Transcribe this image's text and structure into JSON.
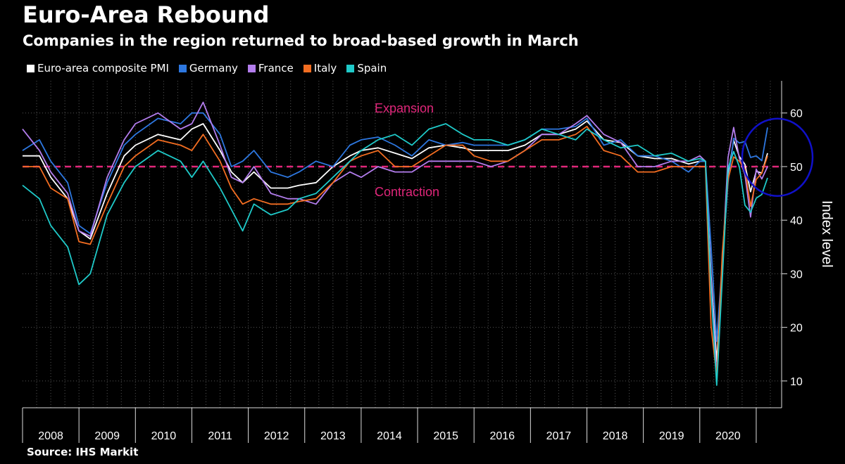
{
  "header": {
    "title": "Euro-Area Rebound",
    "subtitle": "Companies in the region returned to broad-based growth in March"
  },
  "source": "Source: IHS Markit",
  "chart_data": {
    "type": "line",
    "title": "Euro-Area Rebound",
    "subtitle": "Companies in the region returned to broad-based growth in March",
    "ylabel": "Index level",
    "ylim": [
      5,
      66
    ],
    "yticks": [
      10,
      20,
      30,
      40,
      50,
      60
    ],
    "xlim": [
      2008.0,
      2021.45
    ],
    "year_labels": [
      "2008",
      "2009",
      "2010",
      "2011",
      "2012",
      "2013",
      "2014",
      "2015",
      "2016",
      "2017",
      "2018",
      "2019",
      "2020"
    ],
    "grid": "vertical dotted",
    "legend_position": "top-left",
    "reference_line": {
      "value": 50,
      "color": "#e0267a"
    },
    "annotations": {
      "expansion": "Expansion",
      "contraction": "Contraction"
    },
    "highlight": {
      "center_x": 2021.25,
      "center_y": 52,
      "color": "#1010c8"
    },
    "series": [
      {
        "name": "Euro-area composite PMI",
        "color": "#ffffff",
        "points": [
          [
            2008.0,
            52
          ],
          [
            2008.3,
            52
          ],
          [
            2008.5,
            48
          ],
          [
            2008.8,
            44
          ],
          [
            2009.0,
            38
          ],
          [
            2009.2,
            36.5
          ],
          [
            2009.5,
            45
          ],
          [
            2009.8,
            52
          ],
          [
            2010.0,
            54
          ],
          [
            2010.4,
            56
          ],
          [
            2010.8,
            55
          ],
          [
            2011.0,
            57
          ],
          [
            2011.2,
            58
          ],
          [
            2011.5,
            53
          ],
          [
            2011.7,
            49
          ],
          [
            2011.9,
            47
          ],
          [
            2012.1,
            49
          ],
          [
            2012.4,
            46
          ],
          [
            2012.7,
            46
          ],
          [
            2012.9,
            46.5
          ],
          [
            2013.2,
            47
          ],
          [
            2013.5,
            50
          ],
          [
            2013.8,
            52
          ],
          [
            2014.0,
            53
          ],
          [
            2014.3,
            53.5
          ],
          [
            2014.6,
            52.5
          ],
          [
            2014.9,
            51.5
          ],
          [
            2015.2,
            53.5
          ],
          [
            2015.5,
            54
          ],
          [
            2015.8,
            53.5
          ],
          [
            2016.0,
            53
          ],
          [
            2016.3,
            53
          ],
          [
            2016.6,
            53
          ],
          [
            2016.9,
            54
          ],
          [
            2017.2,
            56
          ],
          [
            2017.5,
            56
          ],
          [
            2017.8,
            57
          ],
          [
            2018.0,
            58.5
          ],
          [
            2018.3,
            55
          ],
          [
            2018.6,
            54.5
          ],
          [
            2018.9,
            52
          ],
          [
            2019.2,
            51.5
          ],
          [
            2019.5,
            51.5
          ],
          [
            2019.8,
            50.5
          ],
          [
            2020.0,
            51
          ],
          [
            2020.1,
            51
          ],
          [
            2020.2,
            29.7
          ],
          [
            2020.3,
            13.6
          ],
          [
            2020.4,
            31
          ],
          [
            2020.5,
            48.5
          ],
          [
            2020.6,
            54.9
          ],
          [
            2020.7,
            51.9
          ],
          [
            2020.8,
            50.4
          ],
          [
            2020.9,
            45.3
          ],
          [
            2021.0,
            49.1
          ],
          [
            2021.1,
            48.8
          ],
          [
            2021.2,
            52.5
          ]
        ]
      },
      {
        "name": "Germany",
        "color": "#2d77e0",
        "points": [
          [
            2008.0,
            53
          ],
          [
            2008.3,
            55
          ],
          [
            2008.5,
            51
          ],
          [
            2008.8,
            47
          ],
          [
            2009.0,
            39
          ],
          [
            2009.2,
            37.5
          ],
          [
            2009.5,
            47
          ],
          [
            2009.8,
            54
          ],
          [
            2010.0,
            56
          ],
          [
            2010.4,
            59
          ],
          [
            2010.8,
            58
          ],
          [
            2011.0,
            60
          ],
          [
            2011.2,
            60
          ],
          [
            2011.5,
            56
          ],
          [
            2011.7,
            50
          ],
          [
            2011.9,
            51
          ],
          [
            2012.1,
            53
          ],
          [
            2012.4,
            49
          ],
          [
            2012.7,
            48
          ],
          [
            2012.9,
            49
          ],
          [
            2013.2,
            51
          ],
          [
            2013.5,
            50
          ],
          [
            2013.8,
            54
          ],
          [
            2014.0,
            55
          ],
          [
            2014.3,
            55.5
          ],
          [
            2014.6,
            54
          ],
          [
            2014.9,
            52
          ],
          [
            2015.2,
            55
          ],
          [
            2015.5,
            54
          ],
          [
            2015.8,
            54.5
          ],
          [
            2016.0,
            54
          ],
          [
            2016.3,
            54
          ],
          [
            2016.6,
            54
          ],
          [
            2016.9,
            55
          ],
          [
            2017.2,
            57
          ],
          [
            2017.5,
            57
          ],
          [
            2017.8,
            57.5
          ],
          [
            2018.0,
            59
          ],
          [
            2018.3,
            54
          ],
          [
            2018.6,
            55
          ],
          [
            2018.9,
            52
          ],
          [
            2019.2,
            52
          ],
          [
            2019.5,
            51
          ],
          [
            2019.8,
            49
          ],
          [
            2020.0,
            51
          ],
          [
            2020.1,
            51
          ],
          [
            2020.2,
            35
          ],
          [
            2020.3,
            17.4
          ],
          [
            2020.4,
            32.3
          ],
          [
            2020.5,
            47
          ],
          [
            2020.6,
            55.3
          ],
          [
            2020.7,
            54.4
          ],
          [
            2020.8,
            54.7
          ],
          [
            2020.9,
            51.7
          ],
          [
            2021.0,
            52
          ],
          [
            2021.1,
            51.1
          ],
          [
            2021.2,
            57.3
          ]
        ]
      },
      {
        "name": "France",
        "color": "#b37ded",
        "points": [
          [
            2008.0,
            57
          ],
          [
            2008.3,
            53
          ],
          [
            2008.5,
            49
          ],
          [
            2008.8,
            45
          ],
          [
            2009.0,
            38
          ],
          [
            2009.2,
            37
          ],
          [
            2009.5,
            48
          ],
          [
            2009.8,
            55
          ],
          [
            2010.0,
            58
          ],
          [
            2010.4,
            60
          ],
          [
            2010.8,
            57
          ],
          [
            2011.0,
            58
          ],
          [
            2011.2,
            62
          ],
          [
            2011.5,
            54
          ],
          [
            2011.7,
            48
          ],
          [
            2011.9,
            47
          ],
          [
            2012.1,
            50
          ],
          [
            2012.4,
            45
          ],
          [
            2012.7,
            44
          ],
          [
            2012.9,
            44
          ],
          [
            2013.2,
            43
          ],
          [
            2013.5,
            47
          ],
          [
            2013.8,
            49
          ],
          [
            2014.0,
            48
          ],
          [
            2014.3,
            50
          ],
          [
            2014.6,
            49
          ],
          [
            2014.9,
            49
          ],
          [
            2015.2,
            51
          ],
          [
            2015.5,
            51
          ],
          [
            2015.8,
            51
          ],
          [
            2016.0,
            51
          ],
          [
            2016.3,
            50
          ],
          [
            2016.6,
            51
          ],
          [
            2016.9,
            53
          ],
          [
            2017.2,
            56
          ],
          [
            2017.5,
            56
          ],
          [
            2017.8,
            58
          ],
          [
            2018.0,
            59.5
          ],
          [
            2018.3,
            56
          ],
          [
            2018.6,
            54.5
          ],
          [
            2018.9,
            50
          ],
          [
            2019.2,
            50
          ],
          [
            2019.5,
            51
          ],
          [
            2019.8,
            51
          ],
          [
            2020.0,
            52
          ],
          [
            2020.1,
            51
          ],
          [
            2020.2,
            28.9
          ],
          [
            2020.3,
            11.1
          ],
          [
            2020.4,
            32.1
          ],
          [
            2020.5,
            51.7
          ],
          [
            2020.6,
            57.3
          ],
          [
            2020.7,
            51.6
          ],
          [
            2020.8,
            48.5
          ],
          [
            2020.9,
            40.6
          ],
          [
            2021.0,
            49.5
          ],
          [
            2021.1,
            47.7
          ],
          [
            2021.2,
            50
          ]
        ]
      },
      {
        "name": "Italy",
        "color": "#f36d21",
        "points": [
          [
            2008.0,
            50
          ],
          [
            2008.3,
            50
          ],
          [
            2008.5,
            46
          ],
          [
            2008.8,
            44
          ],
          [
            2009.0,
            36
          ],
          [
            2009.2,
            35.5
          ],
          [
            2009.5,
            43
          ],
          [
            2009.8,
            50
          ],
          [
            2010.0,
            52
          ],
          [
            2010.4,
            55
          ],
          [
            2010.8,
            54
          ],
          [
            2011.0,
            53
          ],
          [
            2011.2,
            56
          ],
          [
            2011.5,
            51
          ],
          [
            2011.7,
            46
          ],
          [
            2011.9,
            43
          ],
          [
            2012.1,
            44
          ],
          [
            2012.4,
            43
          ],
          [
            2012.7,
            43
          ],
          [
            2012.9,
            43.5
          ],
          [
            2013.2,
            44
          ],
          [
            2013.5,
            47
          ],
          [
            2013.8,
            51
          ],
          [
            2014.0,
            52
          ],
          [
            2014.3,
            53
          ],
          [
            2014.6,
            50
          ],
          [
            2014.9,
            50
          ],
          [
            2015.2,
            52
          ],
          [
            2015.5,
            54
          ],
          [
            2015.8,
            54
          ],
          [
            2016.0,
            52
          ],
          [
            2016.3,
            51
          ],
          [
            2016.6,
            51
          ],
          [
            2016.9,
            53
          ],
          [
            2017.2,
            55
          ],
          [
            2017.5,
            55
          ],
          [
            2017.8,
            56
          ],
          [
            2018.0,
            57.5
          ],
          [
            2018.3,
            53
          ],
          [
            2018.6,
            52
          ],
          [
            2018.9,
            49
          ],
          [
            2019.2,
            49
          ],
          [
            2019.5,
            50
          ],
          [
            2019.8,
            50
          ],
          [
            2020.0,
            50
          ],
          [
            2020.1,
            50
          ],
          [
            2020.2,
            20.2
          ],
          [
            2020.3,
            10.9
          ],
          [
            2020.4,
            33.9
          ],
          [
            2020.5,
            47.6
          ],
          [
            2020.6,
            51.8
          ],
          [
            2020.7,
            51
          ],
          [
            2020.8,
            49.6
          ],
          [
            2020.9,
            42.6
          ],
          [
            2021.0,
            47.6
          ],
          [
            2021.1,
            48.8
          ],
          [
            2021.2,
            52
          ]
        ]
      },
      {
        "name": "Spain",
        "color": "#1fcac9",
        "points": [
          [
            2008.0,
            46.5
          ],
          [
            2008.3,
            44
          ],
          [
            2008.5,
            39
          ],
          [
            2008.8,
            35
          ],
          [
            2009.0,
            28
          ],
          [
            2009.2,
            30
          ],
          [
            2009.5,
            41
          ],
          [
            2009.8,
            47
          ],
          [
            2010.0,
            50
          ],
          [
            2010.4,
            53
          ],
          [
            2010.8,
            51
          ],
          [
            2011.0,
            48
          ],
          [
            2011.2,
            51
          ],
          [
            2011.5,
            46
          ],
          [
            2011.7,
            42
          ],
          [
            2011.9,
            38
          ],
          [
            2012.1,
            43
          ],
          [
            2012.4,
            41
          ],
          [
            2012.7,
            42
          ],
          [
            2012.9,
            44
          ],
          [
            2013.2,
            45
          ],
          [
            2013.5,
            48
          ],
          [
            2013.8,
            51
          ],
          [
            2014.0,
            53
          ],
          [
            2014.3,
            55
          ],
          [
            2014.6,
            56
          ],
          [
            2014.9,
            54
          ],
          [
            2015.2,
            57
          ],
          [
            2015.5,
            58
          ],
          [
            2015.8,
            56
          ],
          [
            2016.0,
            55
          ],
          [
            2016.3,
            55
          ],
          [
            2016.6,
            54
          ],
          [
            2016.9,
            55
          ],
          [
            2017.2,
            57
          ],
          [
            2017.5,
            56
          ],
          [
            2017.8,
            55
          ],
          [
            2018.0,
            57
          ],
          [
            2018.3,
            55
          ],
          [
            2018.6,
            53.5
          ],
          [
            2018.9,
            54
          ],
          [
            2019.2,
            52
          ],
          [
            2019.5,
            52.5
          ],
          [
            2019.8,
            51
          ],
          [
            2020.0,
            51.5
          ],
          [
            2020.1,
            51
          ],
          [
            2020.2,
            26.7
          ],
          [
            2020.3,
            9.2
          ],
          [
            2020.4,
            29.2
          ],
          [
            2020.5,
            49.7
          ],
          [
            2020.6,
            52.8
          ],
          [
            2020.7,
            50
          ],
          [
            2020.8,
            42.8
          ],
          [
            2020.9,
            41.5
          ],
          [
            2021.0,
            44.1
          ],
          [
            2021.1,
            44.8
          ],
          [
            2021.2,
            47.9
          ]
        ]
      }
    ]
  }
}
